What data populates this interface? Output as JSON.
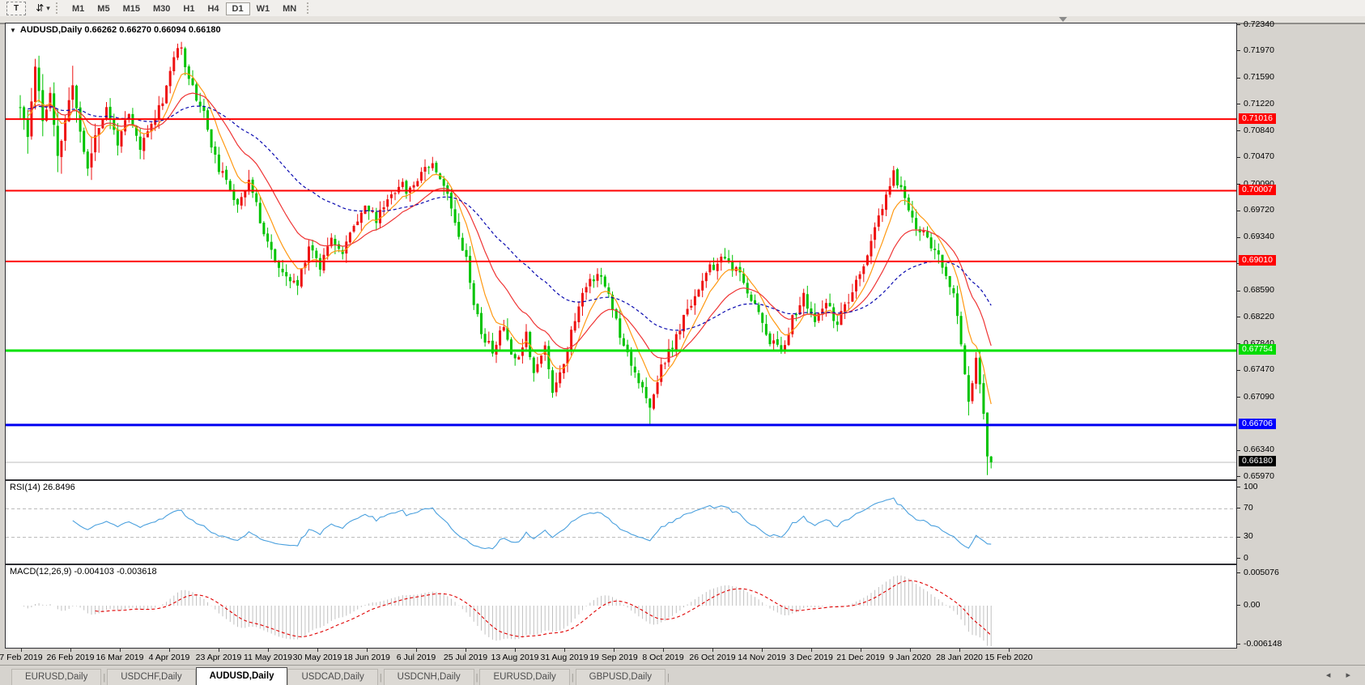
{
  "toolbar": {
    "icons": {
      "text_tool": "T",
      "symbol_cycle": "⇵",
      "dropdown": "▾",
      "title_caret": "▼"
    },
    "timeframes": [
      "M1",
      "M5",
      "M15",
      "M30",
      "H1",
      "H4",
      "D1",
      "W1",
      "MN"
    ],
    "active_timeframe": "D1"
  },
  "chart": {
    "title_text": "AUDUSD,Daily  0.66262 0.66270 0.66094 0.66180",
    "symbol": "AUDUSD",
    "period": "Daily",
    "quote": {
      "open": "0.66262",
      "high": "0.66270",
      "low": "0.66094",
      "close": "0.66180"
    },
    "price_axis_ticks": [
      "0.72340",
      "0.71970",
      "0.71590",
      "0.71220",
      "0.70840",
      "0.70470",
      "0.70090",
      "0.69720",
      "0.69340",
      "0.68970",
      "0.68590",
      "0.68220",
      "0.67840",
      "0.67470",
      "0.67090",
      "0.66340",
      "0.65970"
    ],
    "axis_badges": [
      {
        "label": "0.71016",
        "value": 0.71016,
        "bg": "#FF0000"
      },
      {
        "label": "0.70007",
        "value": 0.70007,
        "bg": "#FF0000"
      },
      {
        "label": "0.69010",
        "value": 0.6901,
        "bg": "#FF0000"
      },
      {
        "label": "0.67754",
        "value": 0.67754,
        "bg": "#00DC00"
      },
      {
        "label": "0.66706",
        "value": 0.66706,
        "bg": "#0000FF"
      },
      {
        "label": "0.66180",
        "value": 0.6618,
        "bg": "#000000"
      }
    ],
    "hlines": [
      {
        "value": 0.71016,
        "color": "#FF0000",
        "width": 2
      },
      {
        "value": 0.70007,
        "color": "#FF0000",
        "width": 2
      },
      {
        "value": 0.6901,
        "color": "#FF0000",
        "width": 2
      },
      {
        "value": 0.67754,
        "color": "#00E100",
        "width": 3
      },
      {
        "value": 0.66706,
        "color": "#0000F0",
        "width": 3
      }
    ],
    "current_price": {
      "value": 0.6618,
      "line_color": "#BDBDBD"
    },
    "colors": {
      "up": "#EE1111",
      "down": "#00C300",
      "background": "#FFFFFF"
    }
  },
  "chart_data": {
    "type": "candlestick",
    "symbol": "AUDUSD",
    "timeframe": "Daily",
    "bars_count": 260,
    "seed": 11,
    "price_range_visible": [
      0.6594,
      0.72363
    ],
    "close_waypoints": [
      [
        0,
        0.7118
      ],
      [
        2,
        0.7075
      ],
      [
        4,
        0.718
      ],
      [
        6,
        0.71
      ],
      [
        8,
        0.7135
      ],
      [
        10,
        0.7045
      ],
      [
        12,
        0.71
      ],
      [
        14,
        0.715
      ],
      [
        16,
        0.7085
      ],
      [
        18,
        0.703
      ],
      [
        20,
        0.708
      ],
      [
        23,
        0.7115
      ],
      [
        26,
        0.707
      ],
      [
        29,
        0.7105
      ],
      [
        32,
        0.706
      ],
      [
        35,
        0.7095
      ],
      [
        38,
        0.713
      ],
      [
        41,
        0.719
      ],
      [
        43,
        0.72
      ],
      [
        46,
        0.7145
      ],
      [
        49,
        0.711
      ],
      [
        52,
        0.7045
      ],
      [
        55,
        0.701
      ],
      [
        58,
        0.6985
      ],
      [
        61,
        0.7015
      ],
      [
        64,
        0.696
      ],
      [
        67,
        0.6915
      ],
      [
        70,
        0.688
      ],
      [
        74,
        0.6868
      ],
      [
        77,
        0.6925
      ],
      [
        80,
        0.6895
      ],
      [
        83,
        0.694
      ],
      [
        86,
        0.691
      ],
      [
        89,
        0.6955
      ],
      [
        92,
        0.698
      ],
      [
        95,
        0.696
      ],
      [
        98,
        0.699
      ],
      [
        101,
        0.701
      ],
      [
        104,
        0.7
      ],
      [
        107,
        0.703
      ],
      [
        110,
        0.7042
      ],
      [
        113,
        0.701
      ],
      [
        116,
        0.696
      ],
      [
        119,
        0.6905
      ],
      [
        121,
        0.6845
      ],
      [
        123,
        0.68
      ],
      [
        126,
        0.6775
      ],
      [
        129,
        0.681
      ],
      [
        132,
        0.676
      ],
      [
        135,
        0.68
      ],
      [
        137,
        0.6745
      ],
      [
        140,
        0.678
      ],
      [
        142,
        0.672
      ],
      [
        145,
        0.676
      ],
      [
        148,
        0.682
      ],
      [
        151,
        0.687
      ],
      [
        154,
        0.6885
      ],
      [
        157,
        0.6855
      ],
      [
        160,
        0.68
      ],
      [
        163,
        0.676
      ],
      [
        166,
        0.672
      ],
      [
        168,
        0.669
      ],
      [
        171,
        0.6755
      ],
      [
        174,
        0.678
      ],
      [
        177,
        0.682
      ],
      [
        180,
        0.6855
      ],
      [
        184,
        0.689
      ],
      [
        188,
        0.6905
      ],
      [
        192,
        0.688
      ],
      [
        196,
        0.684
      ],
      [
        200,
        0.679
      ],
      [
        203,
        0.6775
      ],
      [
        206,
        0.682
      ],
      [
        209,
        0.685
      ],
      [
        212,
        0.6815
      ],
      [
        215,
        0.684
      ],
      [
        218,
        0.6815
      ],
      [
        221,
        0.6845
      ],
      [
        224,
        0.688
      ],
      [
        227,
        0.693
      ],
      [
        230,
        0.6975
      ],
      [
        233,
        0.7025
      ],
      [
        236,
        0.699
      ],
      [
        239,
        0.695
      ],
      [
        242,
        0.6935
      ],
      [
        245,
        0.6905
      ],
      [
        247,
        0.688
      ],
      [
        249,
        0.685
      ],
      [
        251,
        0.679
      ],
      [
        253,
        0.6705
      ],
      [
        255,
        0.676
      ],
      [
        256,
        0.673
      ],
      [
        257,
        0.669
      ],
      [
        258,
        0.6626
      ],
      [
        259,
        0.6618
      ]
    ],
    "noise": {
      "close": 0.0007,
      "gap": 0.00018,
      "wick": 0.0014
    },
    "wick_boost": {
      "until_bar": 22,
      "factor": 2.0
    },
    "wick_overrides": [
      {
        "bar": 43,
        "high": 0.7208
      },
      {
        "bar": 168,
        "low": 0.6671
      },
      {
        "bar": 233,
        "high": 0.7033
      },
      {
        "bar": 253,
        "low": 0.6684
      },
      {
        "bar": 258,
        "low": 0.66
      }
    ],
    "last_bar": {
      "open": 0.66262,
      "high": 0.6627,
      "low": 0.66094,
      "close": 0.6618
    },
    "moving_averages": [
      {
        "name": "ma-fast",
        "period": 8,
        "color": "#FF9912",
        "dash": ""
      },
      {
        "name": "ma-mid",
        "period": 20,
        "color": "#EF3535",
        "dash": ""
      },
      {
        "name": "ma-slow",
        "period": 52,
        "color": "#0909B0",
        "dash": "4,3"
      }
    ],
    "rsi": {
      "period": 14,
      "levels": [
        70,
        30
      ],
      "last_value": 26.8496,
      "line_color": "#4AA0DE"
    },
    "macd": {
      "fast": 12,
      "slow": 26,
      "signal": 9,
      "last_main": -0.004103,
      "last_signal": -0.003618,
      "hist_color": "#C0C0C0",
      "signal_color": "#E00000",
      "range": [
        -0.006148,
        0.005076
      ]
    }
  },
  "rsi_panel": {
    "label": "RSI(14) 26.8496",
    "ticks": [
      {
        "label": "100",
        "value": 100
      },
      {
        "label": "70",
        "value": 70
      },
      {
        "label": "30",
        "value": 30
      },
      {
        "label": "0",
        "value": 0
      }
    ]
  },
  "macd_panel": {
    "label": "MACD(12,26,9) -0.004103 -0.003618",
    "ticks": [
      {
        "label": "0.005076",
        "value": 0.005076
      },
      {
        "label": "0.00",
        "value": 0
      },
      {
        "label": "-0.006148",
        "value": -0.006148
      }
    ]
  },
  "date_axis": {
    "labels": [
      "7 Feb 2019",
      "26 Feb 2019",
      "16 Mar 2019",
      "4 Apr 2019",
      "23 Apr 2019",
      "11 May 2019",
      "30 May 2019",
      "18 Jun 2019",
      "6 Jul 2019",
      "25 Jul 2019",
      "13 Aug 2019",
      "31 Aug 2019",
      "19 Sep 2019",
      "8 Oct 2019",
      "26 Oct 2019",
      "14 Nov 2019",
      "3 Dec 2019",
      "21 Dec 2019",
      "9 Jan 2020",
      "28 Jan 2020",
      "15 Feb 2020"
    ]
  },
  "tabs": {
    "items": [
      "EURUSD,Daily",
      "USDCHF,Daily",
      "AUDUSD,Daily",
      "USDCAD,Daily",
      "USDCNH,Daily",
      "EURUSD,Daily",
      "GBPUSD,Daily"
    ],
    "active_index": 2,
    "scroll_left": "◂",
    "scroll_right": "▸"
  }
}
